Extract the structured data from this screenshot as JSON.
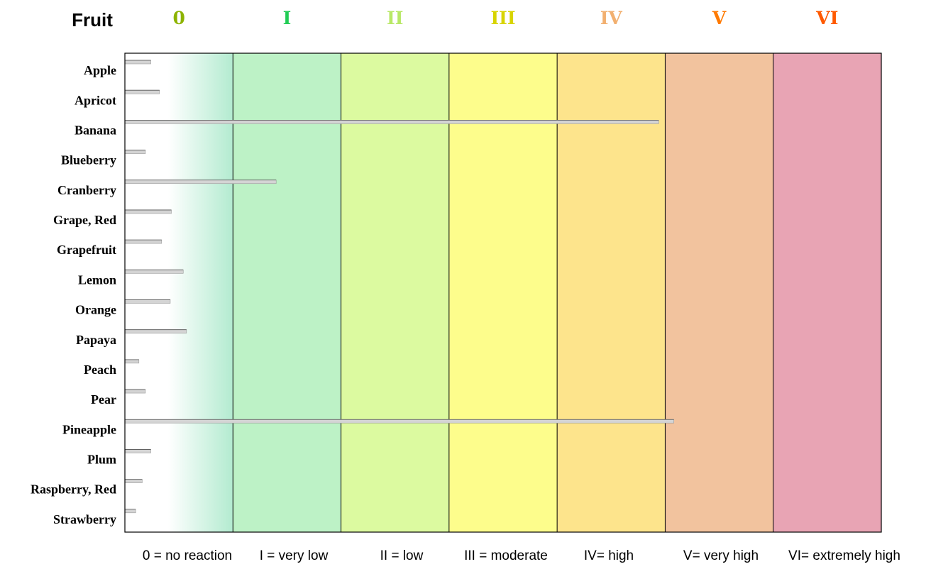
{
  "chart_data": {
    "type": "bar",
    "orientation": "horizontal",
    "column_header": "Fruit",
    "classes": [
      {
        "label": "0",
        "legend": "0 = no reaction",
        "color": "#8db300"
      },
      {
        "label": "I",
        "legend": "I = very low",
        "color": "#22cc55"
      },
      {
        "label": "II",
        "legend": "II = low",
        "color": "#b8e866"
      },
      {
        "label": "III",
        "legend": "III = moderate",
        "color": "#d8d400"
      },
      {
        "label": "IV",
        "legend": "IV= high",
        "color": "#f2b070"
      },
      {
        "label": "V",
        "legend": "V= very high",
        "color": "#ff7a00"
      },
      {
        "label": "VI",
        "legend": "VI= extremely high",
        "color": "#ff5a00"
      }
    ],
    "band_colors": [
      "#b3ebd0",
      "#bdf2c6",
      "#dcfaa0",
      "#fdfd8c",
      "#fde48c",
      "#f2c39e",
      "#e8a4b4"
    ],
    "categories": [
      "Apple",
      "Apricot",
      "Banana",
      "Blueberry",
      "Cranberry",
      "Grape, Red",
      "Grapefruit",
      "Lemon",
      "Orange",
      "Papaya",
      "Peach",
      "Pear",
      "Pineapple",
      "Plum",
      "Raspberry, Red",
      "Strawberry"
    ],
    "values": [
      0.24,
      0.32,
      4.94,
      0.19,
      1.4,
      0.43,
      0.34,
      0.54,
      0.42,
      0.57,
      0.13,
      0.19,
      5.08,
      0.24,
      0.16,
      0.1
    ],
    "xlim": [
      0,
      7
    ],
    "bar_color": "#d4d4d4"
  }
}
